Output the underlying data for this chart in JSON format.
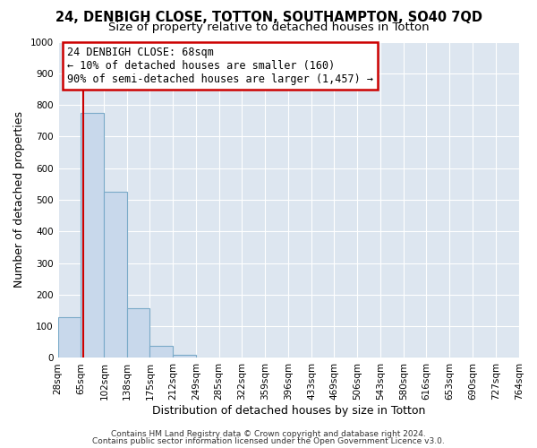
{
  "title": "24, DENBIGH CLOSE, TOTTON, SOUTHAMPTON, SO40 7QD",
  "subtitle": "Size of property relative to detached houses in Totton",
  "xlabel": "Distribution of detached houses by size in Totton",
  "ylabel": "Number of detached properties",
  "bar_edges": [
    28,
    65,
    102,
    138,
    175,
    212,
    249,
    285,
    322,
    359,
    396,
    433,
    469,
    506,
    543,
    580,
    616,
    653,
    690,
    727,
    764
  ],
  "bar_heights": [
    130,
    775,
    525,
    158,
    38,
    10,
    0,
    0,
    0,
    0,
    0,
    0,
    0,
    0,
    0,
    0,
    0,
    0,
    0,
    0
  ],
  "bar_color": "#c8d8eb",
  "bar_edgecolor": "#7aaac8",
  "property_line_x": 68,
  "property_line_color": "#cc0000",
  "ylim": [
    0,
    1000
  ],
  "yticks": [
    0,
    100,
    200,
    300,
    400,
    500,
    600,
    700,
    800,
    900,
    1000
  ],
  "annotation_title": "24 DENBIGH CLOSE: 68sqm",
  "annotation_line1": "← 10% of detached houses are smaller (160)",
  "annotation_line2": "90% of semi-detached houses are larger (1,457) →",
  "footer_line1": "Contains HM Land Registry data © Crown copyright and database right 2024.",
  "footer_line2": "Contains public sector information licensed under the Open Government Licence v3.0.",
  "bg_color": "#ffffff",
  "plot_bg_color": "#dde6f0",
  "grid_color": "#ffffff",
  "title_fontsize": 10.5,
  "subtitle_fontsize": 9.5,
  "axis_label_fontsize": 9,
  "tick_label_fontsize": 7.5,
  "annotation_fontsize": 8.5,
  "footer_fontsize": 6.5
}
